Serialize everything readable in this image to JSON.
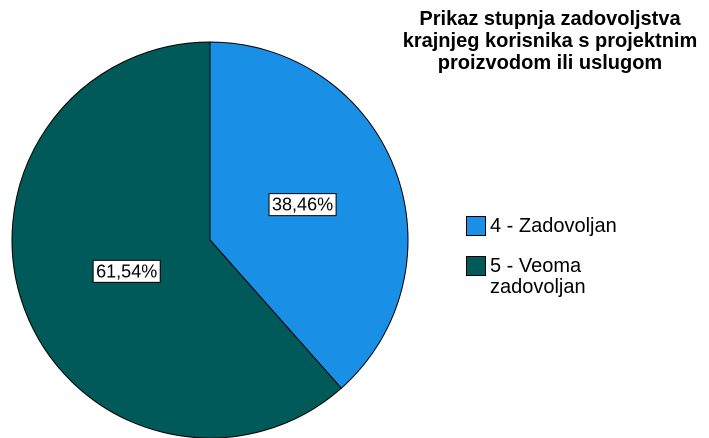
{
  "chart_data": {
    "type": "pie",
    "title": "Prikaz stupnja zadovoljstva krajnjeg korisnika s projektnim proizvodom ili uslugom",
    "categories": [
      "4 - Zadovoljan",
      "5 - Veoma zadovoljan"
    ],
    "values": [
      38.46,
      61.54
    ],
    "value_labels": [
      "38,46%",
      "61,54%"
    ],
    "colors": [
      "#1a8fe6",
      "#005a5a"
    ],
    "legend": "right"
  }
}
